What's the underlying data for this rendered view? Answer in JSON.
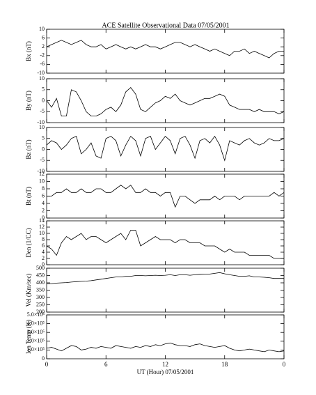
{
  "title": "ACE Satellite Observational Data   07/05/2001",
  "chart_data": [
    {
      "type": "line",
      "ylabel": "Bx (nT)",
      "color": "#000000",
      "ylim": [
        -10,
        10
      ],
      "yticks": [
        -10,
        -6,
        -2,
        2,
        6,
        10
      ],
      "xlim": [
        0,
        24
      ],
      "xticks": [
        0,
        6,
        12,
        18,
        {
          "value": 24,
          "label": "0"
        }
      ],
      "x": [
        0,
        0.5,
        1,
        1.5,
        2,
        2.5,
        3,
        3.5,
        4,
        4.5,
        5,
        5.5,
        6,
        6.5,
        7,
        7.5,
        8,
        8.5,
        9,
        9.5,
        10,
        10.5,
        11,
        11.5,
        12,
        12.5,
        13,
        13.5,
        14,
        14.5,
        15,
        15.5,
        16,
        16.5,
        17,
        17.5,
        18,
        18.5,
        19,
        19.5,
        20,
        20.5,
        21,
        21.5,
        22,
        22.5,
        23,
        23.5,
        24
      ],
      "values": [
        2,
        3,
        4,
        5,
        4,
        3,
        4,
        5,
        3,
        2,
        2,
        3,
        1,
        2,
        3,
        2,
        1,
        2,
        1,
        2,
        3,
        2,
        2,
        1,
        2,
        3,
        4,
        4,
        3,
        2,
        3,
        2,
        1,
        0,
        1,
        0,
        -1,
        -2,
        0,
        0,
        1,
        -1,
        0,
        -1,
        -2,
        -3,
        -1,
        0,
        0
      ]
    },
    {
      "type": "line",
      "ylabel": "By (nT)",
      "color": "#000000",
      "ylim": [
        -10,
        10
      ],
      "yticks": [
        -10,
        -5,
        0,
        5,
        10
      ],
      "xlim": [
        0,
        24
      ],
      "xticks": [
        0,
        6,
        12,
        18,
        {
          "value": 24,
          "label": "0"
        }
      ],
      "x": [
        0,
        0.5,
        1,
        1.5,
        2,
        2.5,
        3,
        3.5,
        4,
        4.5,
        5,
        5.5,
        6,
        6.5,
        7,
        7.5,
        8,
        8.5,
        9,
        9.5,
        10,
        10.5,
        11,
        11.5,
        12,
        12.5,
        13,
        13.5,
        14,
        14.5,
        15,
        15.5,
        16,
        16.5,
        17,
        17.5,
        18,
        18.5,
        19,
        19.5,
        20,
        20.5,
        21,
        21.5,
        22,
        22.5,
        23,
        23.5,
        24
      ],
      "values": [
        0,
        -3,
        1,
        -7,
        -7,
        5,
        4,
        0,
        -5,
        -7,
        -7,
        -6,
        -4,
        -3,
        -5,
        -2,
        4,
        6,
        3,
        -4,
        -5,
        -3,
        -1,
        0,
        2,
        1,
        3,
        0,
        -1,
        -2,
        -1,
        0,
        1,
        1,
        2,
        3,
        2,
        -2,
        -3,
        -4,
        -4,
        -4,
        -5,
        -4,
        -5,
        -5,
        -5,
        -6,
        -5
      ]
    },
    {
      "type": "line",
      "ylabel": "Bz (nT)",
      "color": "#000000",
      "ylim": [
        -10,
        10
      ],
      "yticks": [
        -10,
        -5,
        0,
        5,
        10
      ],
      "xlim": [
        0,
        24
      ],
      "xticks": [
        0,
        6,
        12,
        18,
        {
          "value": 24,
          "label": "0"
        }
      ],
      "x": [
        0,
        0.5,
        1,
        1.5,
        2,
        2.5,
        3,
        3.5,
        4,
        4.5,
        5,
        5.5,
        6,
        6.5,
        7,
        7.5,
        8,
        8.5,
        9,
        9.5,
        10,
        10.5,
        11,
        11.5,
        12,
        12.5,
        13,
        13.5,
        14,
        14.5,
        15,
        15.5,
        16,
        16.5,
        17,
        17.5,
        18,
        18.5,
        19,
        19.5,
        20,
        20.5,
        21,
        21.5,
        22,
        22.5,
        23,
        23.5,
        24
      ],
      "values": [
        2,
        4,
        3,
        0,
        2,
        5,
        6,
        -2,
        0,
        3,
        -3,
        -4,
        5,
        6,
        4,
        -3,
        2,
        6,
        4,
        -3,
        5,
        6,
        0,
        3,
        6,
        4,
        -2,
        5,
        6,
        2,
        -4,
        4,
        5,
        3,
        6,
        2,
        -5,
        4,
        3,
        2,
        4,
        5,
        3,
        2,
        3,
        5,
        4,
        4,
        5
      ]
    },
    {
      "type": "line",
      "ylabel": "Bt (nT)",
      "color": "#000000",
      "ylim": [
        0,
        12
      ],
      "yticks": [
        0,
        2,
        4,
        6,
        8,
        10,
        12
      ],
      "xlim": [
        0,
        24
      ],
      "xticks": [
        0,
        6,
        12,
        18,
        {
          "value": 24,
          "label": "0"
        }
      ],
      "x": [
        0,
        0.5,
        1,
        1.5,
        2,
        2.5,
        3,
        3.5,
        4,
        4.5,
        5,
        5.5,
        6,
        6.5,
        7,
        7.5,
        8,
        8.5,
        9,
        9.5,
        10,
        10.5,
        11,
        11.5,
        12,
        12.5,
        13,
        13.5,
        14,
        14.5,
        15,
        15.5,
        16,
        16.5,
        17,
        17.5,
        18,
        18.5,
        19,
        19.5,
        20,
        20.5,
        21,
        21.5,
        22,
        22.5,
        23,
        23.5,
        24
      ],
      "values": [
        6,
        6,
        7,
        7,
        8,
        7,
        7,
        8,
        7,
        7,
        8,
        8,
        7,
        7,
        8,
        9,
        8,
        9,
        7,
        7,
        8,
        7,
        7,
        6,
        7,
        7,
        3,
        6,
        6,
        5,
        4,
        5,
        5,
        5,
        6,
        5,
        6,
        6,
        6,
        5,
        6,
        6,
        6,
        6,
        6,
        6,
        7,
        6,
        7
      ]
    },
    {
      "type": "line",
      "ylabel": "Den (1/CC)",
      "color": "#000000",
      "ylim": [
        0,
        14
      ],
      "yticks": [
        0,
        2,
        4,
        6,
        8,
        10,
        12,
        14
      ],
      "xlim": [
        0,
        24
      ],
      "xticks": [
        0,
        6,
        12,
        18,
        {
          "value": 24,
          "label": "0"
        }
      ],
      "x": [
        0,
        0.5,
        1,
        1.5,
        2,
        2.5,
        3,
        3.5,
        4,
        4.5,
        5,
        5.5,
        6,
        6.5,
        7,
        7.5,
        8,
        8.5,
        9,
        9.5,
        10,
        10.5,
        11,
        11.5,
        12,
        12.5,
        13,
        13.5,
        14,
        14.5,
        15,
        15.5,
        16,
        16.5,
        17,
        17.5,
        18,
        18.5,
        19,
        19.5,
        20,
        20.5,
        21,
        21.5,
        22,
        22.5,
        23,
        23.5,
        24
      ],
      "values": [
        6,
        5,
        3,
        7,
        9,
        8,
        9,
        10,
        8,
        9,
        9,
        8,
        7,
        8,
        9,
        10,
        8,
        11,
        11,
        6,
        7,
        8,
        9,
        8,
        8,
        8,
        7,
        8,
        8,
        7,
        7,
        7,
        6,
        6,
        6,
        5,
        4,
        5,
        4,
        4,
        4,
        3,
        3,
        3,
        3,
        3,
        2,
        2,
        2
      ]
    },
    {
      "type": "line",
      "ylabel": "Vel (Km/sec)",
      "color": "#000000",
      "ylim": [
        200,
        500
      ],
      "yticks": [
        200,
        250,
        300,
        350,
        400,
        450,
        500
      ],
      "xlim": [
        0,
        24
      ],
      "xticks": [
        0,
        6,
        12,
        18,
        {
          "value": 24,
          "label": "0"
        }
      ],
      "x": [
        0,
        0.5,
        1,
        1.5,
        2,
        2.5,
        3,
        3.5,
        4,
        4.5,
        5,
        5.5,
        6,
        6.5,
        7,
        7.5,
        8,
        8.5,
        9,
        9.5,
        10,
        10.5,
        11,
        11.5,
        12,
        12.5,
        13,
        13.5,
        14,
        14.5,
        15,
        15.5,
        16,
        16.5,
        17,
        17.5,
        18,
        18.5,
        19,
        19.5,
        20,
        20.5,
        21,
        21.5,
        22,
        22.5,
        23,
        23.5,
        24
      ],
      "values": [
        395,
        395,
        398,
        400,
        402,
        405,
        408,
        410,
        412,
        415,
        420,
        425,
        430,
        435,
        440,
        440,
        445,
        445,
        450,
        450,
        448,
        450,
        452,
        450,
        452,
        455,
        450,
        455,
        455,
        452,
        455,
        458,
        460,
        460,
        465,
        470,
        462,
        455,
        450,
        445,
        445,
        448,
        440,
        440,
        438,
        435,
        430,
        430,
        430
      ]
    },
    {
      "type": "line",
      "ylabel": "Ion Temp (K)",
      "xlabel": "UT (Hour)  07/05/2001",
      "color": "#000000",
      "ylim": [
        0,
        500000
      ],
      "yticks": [
        0,
        {
          "value": 100000,
          "label": "1.0×10⁵"
        },
        {
          "value": 200000,
          "label": "2.0×10⁵"
        },
        {
          "value": 300000,
          "label": "3.0×10⁵"
        },
        {
          "value": 400000,
          "label": "4.0×10⁵"
        },
        {
          "value": 500000,
          "label": "5.0×10⁵"
        }
      ],
      "xlim": [
        0,
        24
      ],
      "xticks": [
        0,
        6,
        12,
        18,
        {
          "value": 24,
          "label": "0"
        }
      ],
      "x": [
        0,
        0.5,
        1,
        1.5,
        2,
        2.5,
        3,
        3.5,
        4,
        4.5,
        5,
        5.5,
        6,
        6.5,
        7,
        7.5,
        8,
        8.5,
        9,
        9.5,
        10,
        10.5,
        11,
        11.5,
        12,
        12.5,
        13,
        13.5,
        14,
        14.5,
        15,
        15.5,
        16,
        16.5,
        17,
        17.5,
        18,
        18.5,
        19,
        19.5,
        20,
        20.5,
        21,
        21.5,
        22,
        22.5,
        23,
        23.5,
        24
      ],
      "values": [
        120000,
        130000,
        110000,
        90000,
        120000,
        150000,
        140000,
        100000,
        110000,
        130000,
        120000,
        140000,
        130000,
        120000,
        150000,
        140000,
        130000,
        120000,
        140000,
        130000,
        150000,
        140000,
        160000,
        150000,
        170000,
        180000,
        160000,
        150000,
        150000,
        140000,
        160000,
        170000,
        150000,
        140000,
        130000,
        140000,
        150000,
        120000,
        100000,
        90000,
        100000,
        110000,
        100000,
        90000,
        80000,
        100000,
        90000,
        80000,
        90000
      ]
    }
  ]
}
